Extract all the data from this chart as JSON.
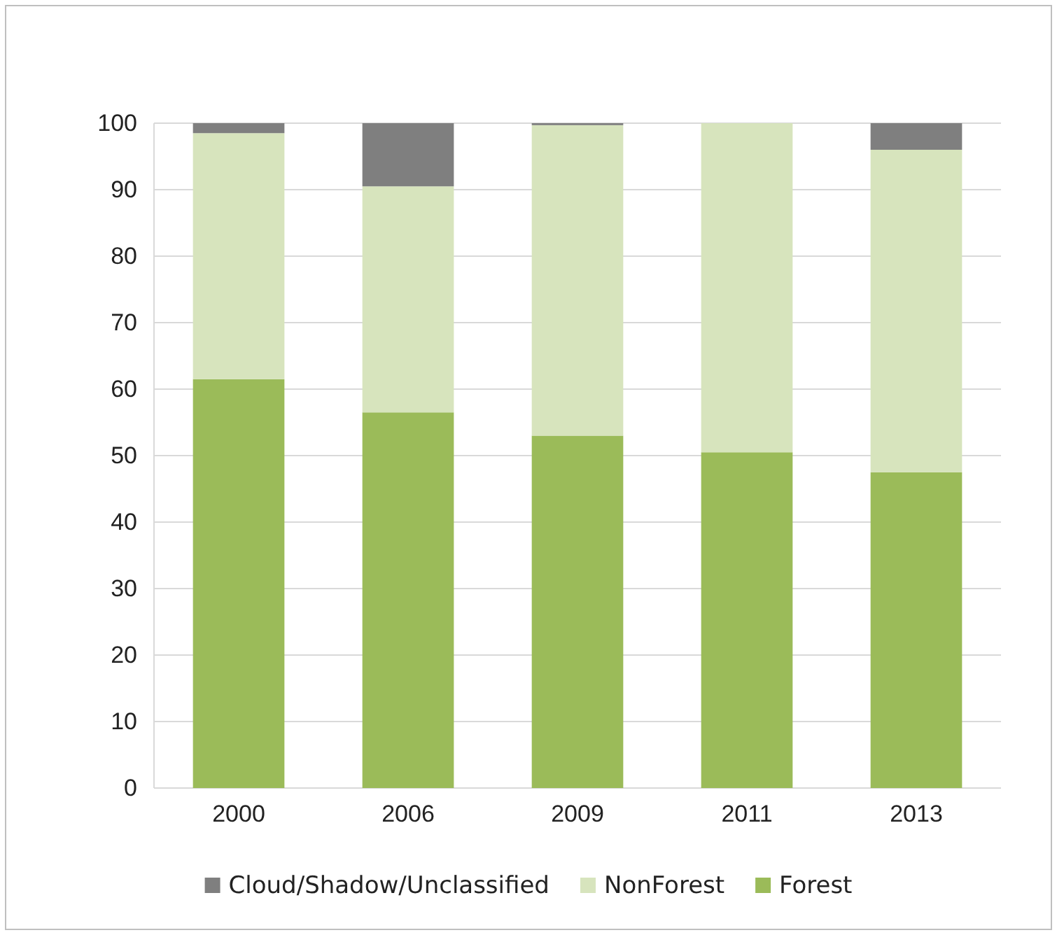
{
  "chart_data": {
    "type": "bar",
    "stacked": true,
    "categories": [
      "2000",
      "2006",
      "2009",
      "2011",
      "2013"
    ],
    "series": [
      {
        "name": "Forest",
        "color": "#9bbb59",
        "values": [
          61.5,
          56.5,
          53,
          50.5,
          47.5
        ]
      },
      {
        "name": "NonForest",
        "color": "#d7e4bd",
        "values": [
          37,
          34,
          46.7,
          49.5,
          48.5
        ]
      },
      {
        "name": "Cloud/Shadow/Unclassified",
        "color": "#7f7f7f",
        "values": [
          1.5,
          9.5,
          0.3,
          0,
          4
        ]
      }
    ],
    "ylim": [
      0,
      100
    ],
    "yticks": [
      0,
      10,
      20,
      30,
      40,
      50,
      60,
      70,
      80,
      90,
      100
    ],
    "grid": "y",
    "legend": "bottom"
  }
}
